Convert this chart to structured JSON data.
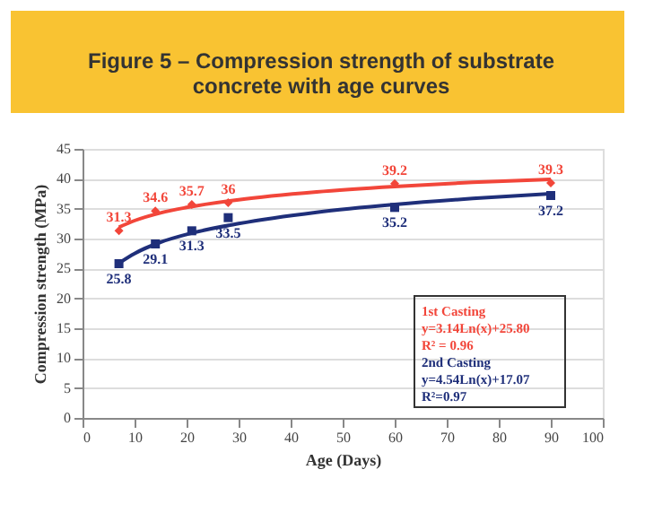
{
  "chart_data": {
    "type": "scatter",
    "title": "Figure 5 – Compression strength of substrate concrete with age curves",
    "xlabel": "Age (Days)",
    "ylabel": "Compression strength (MPa)",
    "x": [
      7,
      14,
      21,
      28,
      60,
      90
    ],
    "series": [
      {
        "color": "#f2463a",
        "marker": "diamond",
        "values": [
          31.3,
          34.6,
          35.7,
          36,
          39.2,
          39.3
        ],
        "value_labels": [
          "31.3",
          "34.6",
          "35.7",
          "36",
          "39.2",
          "39.3"
        ]
      },
      {
        "color": "#1f2f7a",
        "marker": "square",
        "values": [
          25.8,
          29.1,
          31.3,
          33.5,
          35.2,
          37.2
        ],
        "value_labels": [
          "25.8",
          "29.1",
          "31.3",
          "33.5",
          "35.2",
          "37.2"
        ]
      },
      {
        "type": "line",
        "color": "#f2463a",
        "x": [
          7,
          10,
          15,
          20,
          30,
          45,
          60,
          75,
          90
        ],
        "values": [
          31.9,
          33.0,
          34.3,
          35.2,
          36.5,
          37.8,
          38.7,
          39.4,
          39.9
        ]
      },
      {
        "type": "line",
        "color": "#1f2f7a",
        "x": [
          7,
          10,
          15,
          20,
          30,
          45,
          60,
          75,
          90
        ],
        "values": [
          25.9,
          27.5,
          29.4,
          30.7,
          32.5,
          34.4,
          35.7,
          36.7,
          37.5
        ]
      }
    ],
    "annotations": [
      "1st Casting",
      "y=3.14Ln(x)+25.80",
      "R² = 0.96",
      "2nd Casting",
      "y=4.54Ln(x)+17.07",
      "R²=0.97"
    ],
    "xlim": [
      0,
      100
    ],
    "xticks": [
      0,
      10,
      20,
      30,
      40,
      50,
      60,
      70,
      80,
      90,
      100
    ],
    "ylim": [
      0,
      45
    ],
    "yticks": [
      0,
      5,
      10,
      15,
      20,
      25,
      30,
      35,
      40,
      45
    ],
    "grid": "y"
  }
}
